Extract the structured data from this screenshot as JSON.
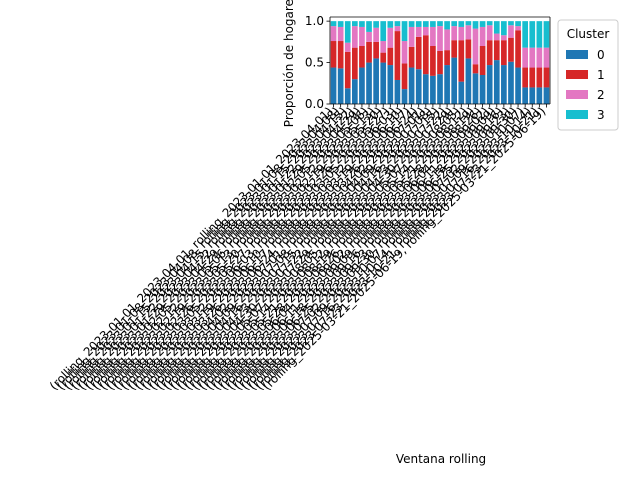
{
  "chart_data": {
    "type": "bar",
    "stacked": true,
    "xlabel": "Ventana rolling",
    "ylabel": "Proporción de hogares",
    "ylim": [
      0,
      1.05
    ],
    "yticks": [
      "0.0",
      "0.5",
      "1.0"
    ],
    "legend": {
      "title": "Cluster",
      "position": "outside-right-top"
    },
    "categories": [
      "(rolling_2023-01-01_2023-04-01, rolling_2023-01-01_2023-04-01)",
      "(rolling_2023-01-08_2023-04-08, rolling_2023-01-08_2023-04-08)",
      "(rolling_2023-01-15_2023-04-15, rolling_2023-01-15_2023-04-15)",
      "(rolling_2023-01-22_2023-04-22, rolling_2023-01-22_2023-04-22)",
      "(rolling_2023-01-29_2023-04-29, rolling_2023-01-29_2023-04-29)",
      "(rolling_2023-02-05_2023-05-06, rolling_2023-02-05_2023-05-06)",
      "(rolling_2023-02-12_2023-05-13, rolling_2023-02-12_2023-05-13)",
      "(rolling_2023-02-19_2023-05-20, rolling_2023-02-19_2023-05-20)",
      "(rolling_2023-02-26_2023-05-27, rolling_2023-02-26_2023-05-27)",
      "(rolling_2023-03-05_2023-06-03, rolling_2023-03-05_2023-06-03)",
      "(rolling_2023-03-12_2023-06-10, rolling_2023-03-12_2023-06-10)",
      "(rolling_2023-03-19_2023-06-17, rolling_2023-03-19_2023-06-17)",
      "(rolling_2023-03-26_2023-06-24, rolling_2023-03-26_2023-06-24)",
      "(rolling_2023-04-02_2023-07-01, rolling_2023-04-02_2023-07-01)",
      "(rolling_2023-04-09_2023-07-08, rolling_2023-04-09_2023-07-08)",
      "(rolling_2023-04-16_2023-07-15, rolling_2023-04-16_2023-07-15)",
      "(rolling_2023-04-23_2023-07-22, rolling_2023-04-23_2023-07-22)",
      "(rolling_2023-04-30_2023-07-29, rolling_2023-04-30_2023-07-29)",
      "(rolling_2023-05-07_2023-08-05, rolling_2023-05-07_2023-08-05)",
      "(rolling_2023-05-14_2023-08-12, rolling_2023-05-14_2023-08-12)",
      "(rolling_2023-05-21_2023-08-19, rolling_2023-05-21_2023-08-19)",
      "(rolling_2023-05-28_2023-08-26, rolling_2023-05-28_2023-08-26)",
      "(rolling_2023-06-04_2023-09-02, rolling_2023-06-04_2023-09-02)",
      "(rolling_2023-06-11_2023-09-09, rolling_2023-06-11_2023-09-09)",
      "(rolling_2023-06-18_2023-09-16, rolling_2023-06-18_2023-09-16)",
      "(rolling_2023-06-25_2023-09-23, rolling_2023-06-25_2023-09-23)",
      "(rolling_2023-07-02_2023-09-30, rolling_2023-07-02_2023-09-30)",
      "(rolling_2023-07-09_2023-10-07, rolling_2023-07-09_2023-10-07)",
      "(rolling_2023-07-16_2023-10-14, rolling_2023-07-16_2023-10-14)",
      "(rolling_2023-07-23_2023-10-21, rolling_2023-07-23_2023-10-21)",
      "(rolling_2025-03-21_2025-06-19, rolling_2025-03-21_2025-06-19)"
    ],
    "series": [
      {
        "name": "0",
        "color": "#1f77b4",
        "values": [
          0.44,
          0.43,
          0.19,
          0.3,
          0.44,
          0.5,
          0.55,
          0.5,
          0.47,
          0.29,
          0.18,
          0.44,
          0.42,
          0.36,
          0.34,
          0.36,
          0.47,
          0.56,
          0.27,
          0.55,
          0.37,
          0.35,
          0.47,
          0.53,
          0.47,
          0.51,
          0.44,
          0.2,
          0.2,
          0.2,
          0.2
        ]
      },
      {
        "name": "1",
        "color": "#d62728",
        "values": [
          0.32,
          0.33,
          0.44,
          0.38,
          0.26,
          0.25,
          0.2,
          0.12,
          0.21,
          0.59,
          0.31,
          0.25,
          0.39,
          0.47,
          0.36,
          0.28,
          0.18,
          0.21,
          0.5,
          0.23,
          0.11,
          0.35,
          0.3,
          0.24,
          0.3,
          0.29,
          0.45,
          0.24,
          0.24,
          0.24,
          0.24
        ]
      },
      {
        "name": "2",
        "color": "#e377c2",
        "values": [
          0.18,
          0.17,
          0.11,
          0.26,
          0.23,
          0.12,
          0.17,
          0.14,
          0.24,
          0.06,
          0.27,
          0.24,
          0.12,
          0.1,
          0.23,
          0.3,
          0.25,
          0.17,
          0.16,
          0.17,
          0.43,
          0.23,
          0.18,
          0.08,
          0.06,
          0.15,
          0.05,
          0.24,
          0.24,
          0.24,
          0.24
        ]
      },
      {
        "name": "3",
        "color": "#17becf",
        "values": [
          0.06,
          0.07,
          0.26,
          0.06,
          0.07,
          0.13,
          0.08,
          0.24,
          0.08,
          0.06,
          0.24,
          0.07,
          0.07,
          0.07,
          0.07,
          0.06,
          0.1,
          0.06,
          0.07,
          0.05,
          0.09,
          0.07,
          0.05,
          0.15,
          0.17,
          0.05,
          0.06,
          0.32,
          0.32,
          0.32,
          0.32
        ]
      }
    ]
  }
}
